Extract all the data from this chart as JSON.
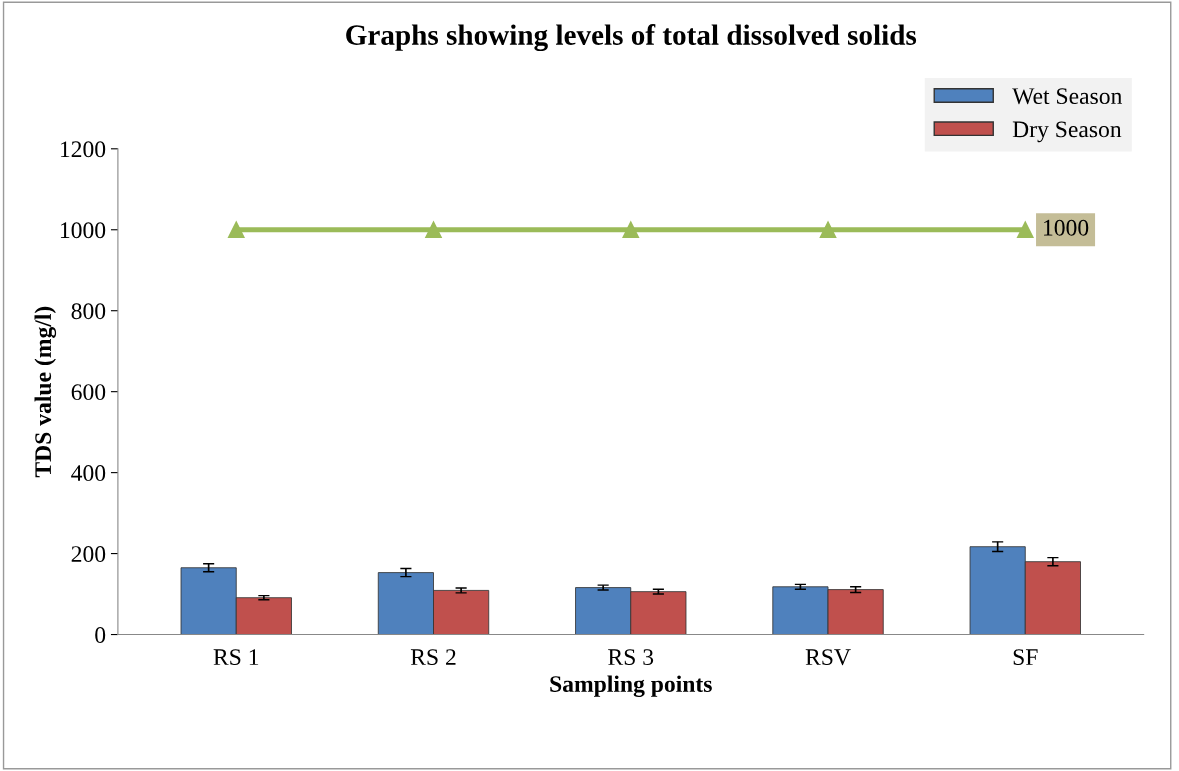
{
  "chart_data": {
    "type": "bar",
    "title": "Graphs showing levels of total dissolved solids",
    "xlabel": "Sampling points",
    "ylabel": "TDS value (mg/l)",
    "categories": [
      "RS 1",
      "RS 2",
      "RS 3",
      "RSV",
      "SF"
    ],
    "series": [
      {
        "name": "Wet Season",
        "color": "#4f81bd",
        "values": [
          165,
          153,
          116,
          118,
          217
        ],
        "errors": [
          10,
          10,
          6,
          6,
          12
        ]
      },
      {
        "name": "Dry Season",
        "color": "#c0504d",
        "values": [
          91,
          109,
          106,
          111,
          180
        ],
        "errors": [
          5,
          6,
          6,
          7,
          10
        ]
      },
      {
        "type": "line",
        "color": "#9bbb59",
        "values": [
          1000,
          1000,
          1000,
          1000,
          1000
        ],
        "marker": "triangle",
        "value_labels": [
          null,
          null,
          null,
          null,
          "1000"
        ]
      }
    ],
    "ylim": [
      0,
      1200
    ],
    "yticks": [
      0,
      200,
      400,
      600,
      800,
      1000,
      1200
    ],
    "grid": false,
    "legend": "top right"
  }
}
